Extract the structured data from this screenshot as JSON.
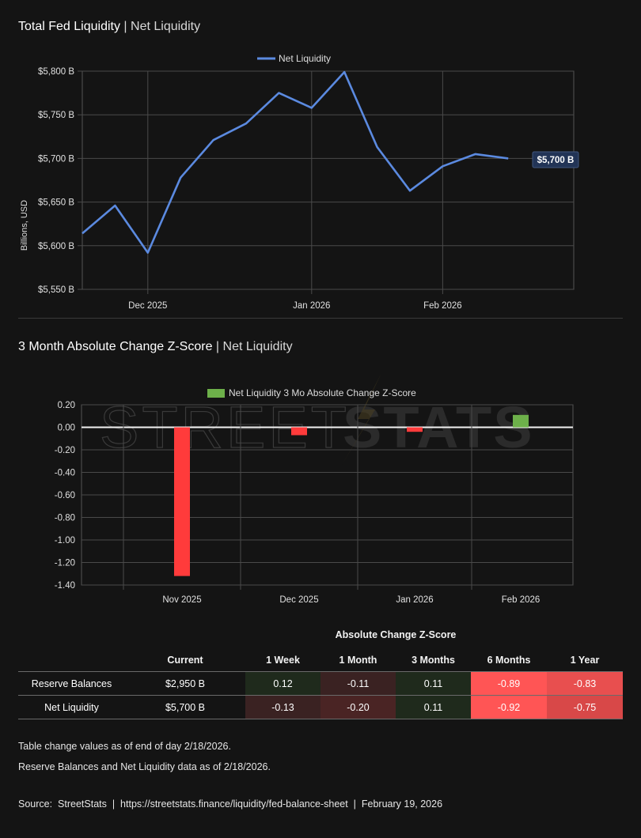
{
  "top_chart": {
    "title_main": "Total Fed Liquidity",
    "title_sep": " | ",
    "title_sub": "Net Liquidity",
    "legend": "Net Liquidity",
    "ylabel": "Billions, USD",
    "last_label": "$5,700 B"
  },
  "bottom_chart": {
    "title_main": "3 Month Absolute Change Z-Score",
    "title_sep": " | ",
    "title_sub": "Net Liquidity",
    "legend": "Net Liquidity 3 Mo Absolute Change Z-Score",
    "watermark_left": "STREET",
    "watermark_right": "STATS"
  },
  "chart_data": [
    {
      "type": "line",
      "title": "Total Fed Liquidity | Net Liquidity",
      "ylabel": "Billions, USD",
      "ylim": [
        5550,
        5800
      ],
      "yticks": [
        5550,
        5600,
        5650,
        5700,
        5750,
        5800
      ],
      "ytick_labels": [
        "$5,550 B",
        "$5,600 B",
        "$5,650 B",
        "$5,700 B",
        "$5,750 B",
        "$5,800 B"
      ],
      "xlim": [
        0,
        15
      ],
      "xticks": [
        2,
        7,
        11
      ],
      "xtick_labels": [
        "Dec 2025",
        "Jan 2026",
        "Feb 2026"
      ],
      "series": [
        {
          "name": "Net Liquidity",
          "color": "#5b8ae0",
          "x": [
            0,
            1,
            2,
            3,
            4,
            5,
            6,
            7,
            8,
            9,
            10,
            11,
            12,
            13
          ],
          "values": [
            5614,
            5646,
            5592,
            5678,
            5721,
            5740,
            5775,
            5758,
            5799,
            5713,
            5663,
            5691,
            5705,
            5700
          ]
        }
      ]
    },
    {
      "type": "bar",
      "title": "3 Month Absolute Change Z-Score | Net Liquidity",
      "ylim": [
        -1.4,
        0.2
      ],
      "yticks": [
        0.2,
        0.0,
        -0.2,
        -0.4,
        -0.6,
        -0.8,
        -1.0,
        -1.2,
        -1.4
      ],
      "ytick_labels": [
        "0.20",
        "0.00",
        "-0.20",
        "-0.40",
        "-0.60",
        "-0.80",
        "-1.00",
        "-1.20",
        "-1.40"
      ],
      "categories": [
        "Nov 2025",
        "Dec 2025",
        "Jan 2026",
        "Feb 2026"
      ],
      "series": [
        {
          "name": "Net Liquidity 3 Mo Absolute Change Z-Score",
          "values": [
            -1.32,
            -0.07,
            -0.04,
            0.11
          ]
        }
      ],
      "colors": {
        "positive": "#6db04a",
        "negative": "#ff3b3b"
      }
    }
  ],
  "table": {
    "super_header": "Absolute Change Z-Score",
    "headers": [
      "",
      "Current",
      "1 Week",
      "1 Month",
      "3 Months",
      "6 Months",
      "1 Year"
    ],
    "rows": [
      {
        "name": "Reserve Balances",
        "current": "$2,950 B",
        "values": [
          "0.12",
          "-0.11",
          "0.11",
          "-0.89",
          "-0.83"
        ],
        "colors": [
          "#1f2a1c",
          "#3a2222",
          "#1f2a1c",
          "#ff5555",
          "#e84f4f"
        ]
      },
      {
        "name": "Net Liquidity",
        "current": "$5,700 B",
        "values": [
          "-0.13",
          "-0.20",
          "0.11",
          "-0.92",
          "-0.75"
        ],
        "colors": [
          "#3a2222",
          "#4a2424",
          "#1f2a1c",
          "#ff5555",
          "#d84848"
        ]
      }
    ]
  },
  "notes": {
    "line1": "Table change values as of end of day 2/18/2026.",
    "line2": "Reserve Balances and Net Liquidity data as of 2/18/2026."
  },
  "footer": {
    "source_label": "Source:",
    "source_name": "StreetStats",
    "url": "https://streetstats.finance/liquidity/fed-balance-sheet",
    "date": "February 19, 2026",
    "sep": "|"
  }
}
